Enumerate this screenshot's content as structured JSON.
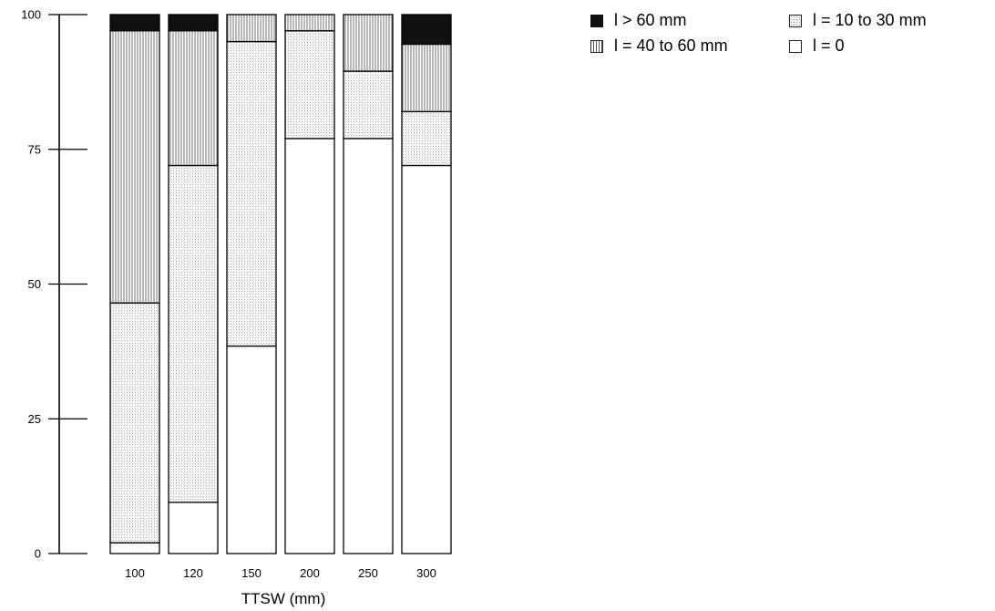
{
  "chart_data": {
    "type": "bar",
    "stacked": true,
    "categories": [
      "100",
      "120",
      "150",
      "200",
      "250",
      "300"
    ],
    "series": [
      {
        "name": "l = 0",
        "pattern": "empty",
        "values": [
          2.0,
          9.5,
          38.5,
          77.0,
          77.0,
          72.0
        ]
      },
      {
        "name": "l = 10 to 30 mm",
        "pattern": "dots",
        "values": [
          44.5,
          62.5,
          56.5,
          20.0,
          12.5,
          10.0
        ]
      },
      {
        "name": "l = 40 to 60 mm",
        "pattern": "vstripe",
        "values": [
          50.5,
          25.0,
          5.0,
          3.0,
          10.5,
          12.5
        ]
      },
      {
        "name": "l > 60 mm",
        "pattern": "solid",
        "values": [
          3.0,
          3.0,
          0.0,
          0.0,
          0.0,
          5.5
        ]
      }
    ],
    "xlabel": "TTSW (mm)",
    "ylabel": "",
    "ylim": [
      0,
      100
    ],
    "yticks": [
      0,
      25,
      50,
      75,
      100
    ],
    "legend_position": "top-right",
    "grid": false
  },
  "legend": {
    "gt60": "l > 60 mm",
    "s10_30": "l = 10 to 30 mm",
    "s40_60": "l = 40 to 60 mm",
    "zero": "l = 0"
  }
}
